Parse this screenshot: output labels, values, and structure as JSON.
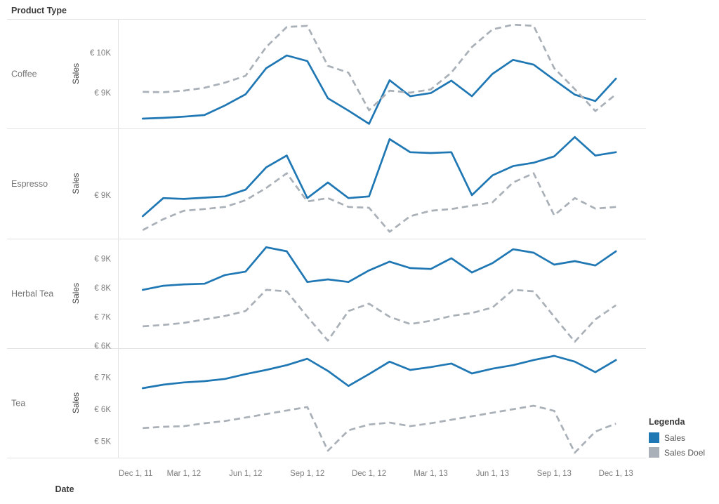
{
  "header": {
    "title": "Product Type"
  },
  "x_axis_title": "Date",
  "legend": {
    "title": "Legenda",
    "items": [
      {
        "label": "Sales",
        "color": "#1f77b4",
        "dashed": false
      },
      {
        "label": "Sales Doel",
        "color": "#a9b0b7",
        "dashed": true
      }
    ]
  },
  "colors": {
    "sales_line": "#1f77b4",
    "sales_doel_line": "#a9b0b7",
    "grid_line": "#e2e2e2",
    "tick_text": "#7d7d7d",
    "product_text": "#767676",
    "title_text": "#3b3b3b"
  },
  "chart_data": {
    "type": "line",
    "title": "Product Type",
    "xlabel": "Date",
    "legend_position": "bottom-right",
    "x_tick_labels": [
      "Dec 1, 11",
      "Mar 1, 12",
      "Jun 1, 12",
      "Sep 1, 12",
      "Dec 1, 12",
      "Mar 1, 13",
      "Jun 1, 13",
      "Sep 1, 13",
      "Dec 1, 13"
    ],
    "x_values": [
      "Jan 12",
      "Feb 12",
      "Mar 12",
      "Apr 12",
      "May 12",
      "Jun 12",
      "Jul 12",
      "Aug 12",
      "Sep 12",
      "Oct 12",
      "Nov 12",
      "Dec 12",
      "Jan 13",
      "Feb 13",
      "Mar 13",
      "Apr 13",
      "May 13",
      "Jun 13",
      "Jul 13",
      "Aug 13",
      "Sep 13",
      "Oct 13",
      "Nov 13",
      "Dec 13"
    ],
    "panels": [
      {
        "product": "Coffee",
        "y_axis_title": "Sales",
        "y_domain": [
          8105,
          10842
        ],
        "y_ticks": [
          {
            "value": 10000,
            "label": "€ 10K"
          },
          {
            "value": 9000,
            "label": "€ 9K"
          }
        ],
        "series": [
          {
            "name": "Sales",
            "values": [
              8350,
              8370,
              8400,
              8440,
              8680,
              8960,
              9610,
              9930,
              9790,
              8860,
              8550,
              8220,
              9310,
              8910,
              8990,
              9300,
              8910,
              9470,
              9820,
              9700,
              9320,
              8950,
              8790,
              9350
            ]
          },
          {
            "name": "Sales Doel",
            "values": [
              9020,
              9010,
              9050,
              9120,
              9250,
              9420,
              10140,
              10640,
              10670,
              9670,
              9500,
              8560,
              9050,
              9000,
              9080,
              9500,
              10140,
              10580,
              10700,
              10670,
              9610,
              9090,
              8540,
              8960
            ]
          }
        ]
      },
      {
        "product": "Espresso",
        "y_axis_title": "Sales",
        "y_domain": [
          7967,
          10583
        ],
        "y_ticks": [
          {
            "value": 9000,
            "label": "€ 9K"
          }
        ],
        "series": [
          {
            "name": "Sales",
            "values": [
              8500,
              8930,
              8910,
              8940,
              8970,
              9130,
              9660,
              9940,
              8930,
              9300,
              8930,
              8970,
              10330,
              10020,
              10000,
              10020,
              9000,
              9470,
              9690,
              9770,
              9920,
              10380,
              9940,
              10020
            ]
          },
          {
            "name": "Sales Doel",
            "values": [
              8170,
              8430,
              8630,
              8670,
              8720,
              8880,
              9170,
              9520,
              8850,
              8930,
              8720,
              8700,
              8130,
              8500,
              8630,
              8670,
              8750,
              8830,
              9300,
              9520,
              8520,
              8930,
              8680,
              8720
            ]
          }
        ]
      },
      {
        "product": "Herbal Tea",
        "y_axis_title": "Sales",
        "y_domain": [
          5918,
          9695
        ],
        "y_ticks": [
          {
            "value": 9000,
            "label": "€ 9K"
          },
          {
            "value": 8000,
            "label": "€ 8K"
          },
          {
            "value": 7000,
            "label": "€ 7K"
          },
          {
            "value": 6000,
            "label": "€ 6K"
          }
        ],
        "series": [
          {
            "name": "Sales",
            "values": [
              7930,
              8070,
              8120,
              8140,
              8440,
              8560,
              9400,
              9260,
              8200,
              8290,
              8200,
              8600,
              8900,
              8680,
              8650,
              9020,
              8530,
              8850,
              9330,
              9210,
              8800,
              8920,
              8770,
              9260
            ]
          },
          {
            "name": "Sales Doel",
            "values": [
              6670,
              6720,
              6790,
              6910,
              7030,
              7200,
              7930,
              7880,
              7000,
              6180,
              7200,
              7450,
              7000,
              6750,
              6860,
              7030,
              7130,
              7320,
              7930,
              7880,
              7000,
              6140,
              6910,
              7400
            ]
          }
        ]
      },
      {
        "product": "Tea",
        "y_axis_title": "Sales",
        "y_domain": [
          4483,
          7912
        ],
        "y_ticks": [
          {
            "value": 7000,
            "label": "€ 7K"
          },
          {
            "value": 6000,
            "label": "€ 6K"
          },
          {
            "value": 5000,
            "label": "€ 5K"
          }
        ],
        "series": [
          {
            "name": "Sales",
            "values": [
              6660,
              6770,
              6840,
              6880,
              6950,
              7100,
              7230,
              7380,
              7580,
              7200,
              6730,
              7100,
              7490,
              7230,
              7320,
              7430,
              7120,
              7270,
              7380,
              7540,
              7670,
              7490,
              7160,
              7540
            ]
          },
          {
            "name": "Sales Doel",
            "values": [
              5410,
              5450,
              5470,
              5560,
              5630,
              5740,
              5850,
              5960,
              6070,
              4700,
              5340,
              5520,
              5580,
              5470,
              5560,
              5670,
              5780,
              5890,
              6000,
              6110,
              5950,
              4640,
              5300,
              5550
            ]
          }
        ]
      }
    ]
  }
}
